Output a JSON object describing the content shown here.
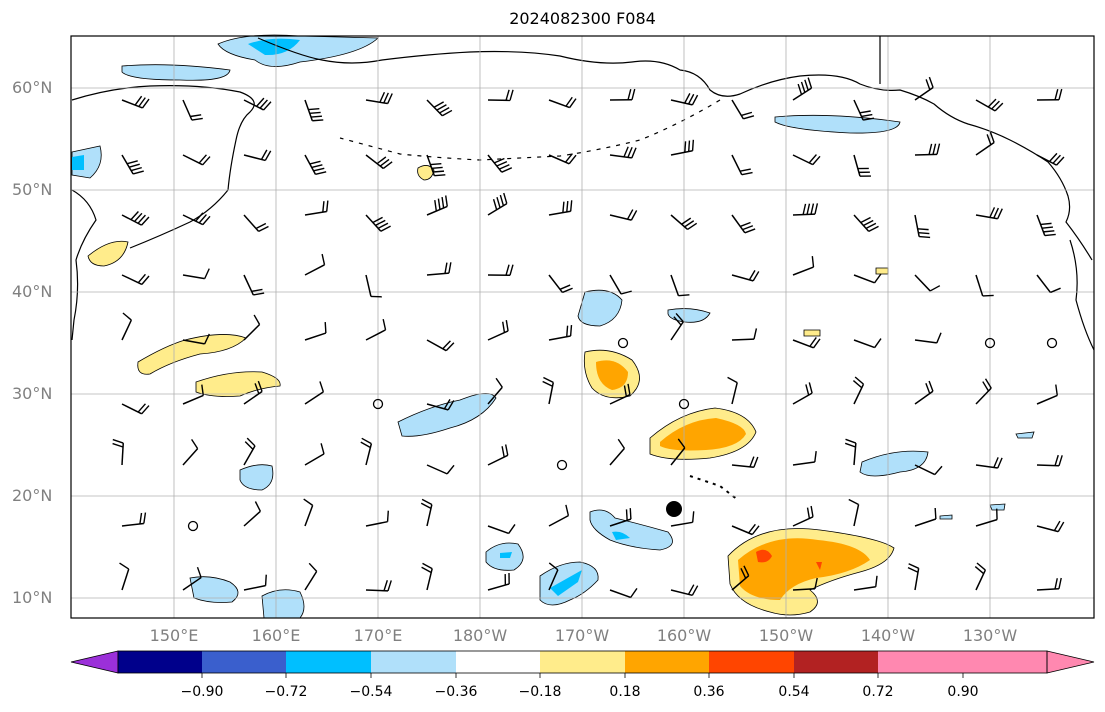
{
  "title": "2024082300 F084",
  "latitude_labels": [
    "60°N",
    "50°N",
    "40°N",
    "30°N",
    "20°N",
    "10°N"
  ],
  "longitude_labels": [
    "150°E",
    "160°E",
    "170°E",
    "180°W",
    "170°W",
    "160°W",
    "150°W",
    "140°W",
    "130°W"
  ],
  "colorbar": {
    "tick_labels": [
      "−0.90",
      "−0.72",
      "−0.54",
      "−0.36",
      "−0.18",
      "0.18",
      "0.36",
      "0.54",
      "0.72",
      "0.90"
    ],
    "colors": [
      "#9b30d9",
      "#00008b",
      "#3a5fcd",
      "#00bfff",
      "#b0e0fa",
      "#ffffff",
      "#ffec8b",
      "#ffa500",
      "#ff4500",
      "#b22222",
      "#ff88b0"
    ]
  },
  "field_colors": {
    "light_blue": "#b0e0fa",
    "mid_blue": "#00bfff",
    "yellow": "#ffec8b",
    "orange": "#ffa500",
    "red_orange": "#ff4500",
    "coast": "#000000",
    "grid": "#b0b0b0"
  },
  "icons": {
    "storm_marker": "filled-circle",
    "calm_wind": "open-circle",
    "wind": "wind-barb"
  }
}
